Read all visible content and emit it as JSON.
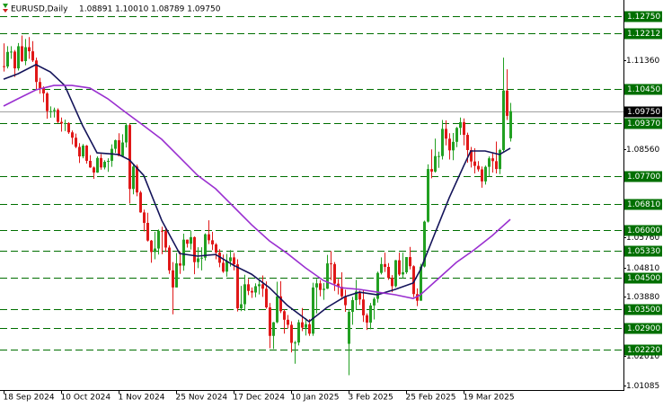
{
  "chart_data": {
    "type": "candlestick",
    "title": "EURUSD,Daily",
    "subtitle": "1.08891 1.10010 1.08789 1.09750",
    "bull_color": "#22a022",
    "bear_color": "#e01818",
    "xlim": [
      -1,
      172.5
    ],
    "ylim": [
      1.0094,
      1.1326
    ],
    "xticks": [
      {
        "value": 0,
        "label": "18 Sep 2024"
      },
      {
        "value": 16,
        "label": "10 Oct 2024"
      },
      {
        "value": 32,
        "label": "1 Nov 2024"
      },
      {
        "value": 48,
        "label": "25 Nov 2024"
      },
      {
        "value": 64,
        "label": "17 Dec 2024"
      },
      {
        "value": 80,
        "label": "10 Jan 2025"
      },
      {
        "value": 96,
        "label": "3 Feb 2025"
      },
      {
        "value": 112,
        "label": "25 Feb 2025"
      },
      {
        "value": 128,
        "label": "19 Mar 2025"
      }
    ],
    "yticks": [
      {
        "value": 1.1136,
        "label": "1.11360"
      },
      {
        "value": 1.0856,
        "label": "1.08560"
      },
      {
        "value": 1.0576,
        "label": "1.05760"
      },
      {
        "value": 1.0481,
        "label": "1.04810"
      },
      {
        "value": 1.0388,
        "label": "1.03880"
      },
      {
        "value": 1.0201,
        "label": "1.02010"
      },
      {
        "value": 1.01085,
        "label": "1.01085"
      }
    ],
    "level_color": "#006f00",
    "levels": [
      {
        "value": 1.1275,
        "label": "1.12750"
      },
      {
        "value": 1.12212,
        "label": "1.12212"
      },
      {
        "value": 1.1045,
        "label": "1.10450"
      },
      {
        "value": 1.0937,
        "label": "1.09370"
      },
      {
        "value": 1.077,
        "label": "1.07700"
      },
      {
        "value": 1.0681,
        "label": "1.06810"
      },
      {
        "value": 1.06,
        "label": "1.06000"
      },
      {
        "value": 1.0533,
        "label": "1.05330"
      },
      {
        "value": 1.045,
        "label": "1.04500"
      },
      {
        "value": 1.035,
        "label": "1.03500"
      },
      {
        "value": 1.029,
        "label": "1.02900"
      },
      {
        "value": 1.0222,
        "label": "1.02220"
      }
    ],
    "current_price": {
      "value": 1.0975,
      "label": "1.09750"
    },
    "open": [
      1.1117,
      1.1116,
      1.1162,
      1.1163,
      1.111,
      1.118,
      1.1133,
      1.1177,
      1.1164,
      1.1135,
      1.1067,
      1.1047,
      1.1031,
      1.0975,
      1.0975,
      1.0979,
      1.0941,
      1.0936,
      1.0937,
      1.0908,
      1.0891,
      1.0862,
      1.0832,
      1.0866,
      1.0818,
      1.0797,
      1.0781,
      1.0827,
      1.0797,
      1.0815,
      1.0818,
      1.0856,
      1.0883,
      1.0833,
      1.0876,
      1.0931,
      1.0729,
      1.08,
      1.0718,
      1.0655,
      1.0622,
      1.0566,
      1.053,
      1.0541,
      1.0597,
      1.0596,
      1.0544,
      1.0472,
      1.0418,
      1.0494,
      1.0487,
      1.0569,
      1.0556,
      1.0577,
      1.0498,
      1.051,
      1.0512,
      1.0586,
      1.0567,
      1.0554,
      1.0528,
      1.0496,
      1.0468,
      1.0501,
      1.0513,
      1.0491,
      1.0352,
      1.0365,
      1.0428,
      1.0407,
      1.0402,
      1.0422,
      1.0428,
      1.0414,
      1.0355,
      1.0265,
      1.0308,
      1.039,
      1.0343,
      1.0316,
      1.03,
      1.0243,
      1.0244,
      1.0308,
      1.0291,
      1.0302,
      1.0272,
      1.0418,
      1.0431,
      1.041,
      1.0414,
      1.0494,
      1.0492,
      1.043,
      1.042,
      1.039,
      1.024,
      1.0341,
      1.0378,
      1.0405,
      1.038,
      1.033,
      1.0307,
      1.0361,
      1.0382,
      1.0464,
      1.0492,
      1.0483,
      1.0448,
      1.0422,
      1.0504,
      1.0459,
      1.0466,
      1.0514,
      1.0485,
      1.0397,
      1.0376,
      1.0484,
      1.0626,
      1.0792,
      1.0784,
      1.0833,
      1.0833,
      1.0919,
      1.0888,
      1.0851,
      1.0878,
      1.0922,
      1.094,
      1.09,
      1.0852,
      1.0816,
      1.0802,
      1.0791,
      1.0753,
      1.0799,
      1.0826,
      1.0817,
      1.0792,
      1.0852,
      1.104,
      1.08891
    ],
    "high": [
      1.1189,
      1.118,
      1.118,
      1.1168,
      1.119,
      1.1214,
      1.1203,
      1.1209,
      1.1196,
      1.1144,
      1.108,
      1.1053,
      1.1035,
      1.099,
      1.0986,
      1.0984,
      1.0955,
      1.0948,
      1.094,
      1.0914,
      1.0904,
      1.0874,
      1.0871,
      1.0868,
      1.0836,
      1.08,
      1.0832,
      1.0839,
      1.082,
      1.0826,
      1.087,
      1.0885,
      1.0905,
      1.0902,
      1.0937,
      1.0935,
      1.0806,
      1.0806,
      1.0723,
      1.0664,
      1.0654,
      1.0568,
      1.0594,
      1.0601,
      1.061,
      1.0609,
      1.0551,
      1.0498,
      1.0527,
      1.0531,
      1.0588,
      1.0569,
      1.0597,
      1.0579,
      1.0545,
      1.0545,
      1.0589,
      1.063,
      1.0594,
      1.0558,
      1.0539,
      1.0522,
      1.0524,
      1.0536,
      1.0527,
      1.0507,
      1.0423,
      1.0458,
      1.0445,
      1.0418,
      1.0431,
      1.0444,
      1.0456,
      1.0437,
      1.0369,
      1.0309,
      1.0436,
      1.0438,
      1.0348,
      1.0331,
      1.0311,
      1.0249,
      1.0316,
      1.0353,
      1.0321,
      1.0318,
      1.0433,
      1.0445,
      1.0441,
      1.0432,
      1.0521,
      1.0533,
      1.0498,
      1.0445,
      1.0466,
      1.0411,
      1.0349,
      1.0388,
      1.0442,
      1.0408,
      1.041,
      1.0336,
      1.0369,
      1.0387,
      1.0468,
      1.0513,
      1.0528,
      1.0495,
      1.0457,
      1.0505,
      1.0528,
      1.0528,
      1.0514,
      1.0546,
      1.0488,
      1.0415,
      1.0493,
      1.0629,
      1.0807,
      1.0854,
      1.0888,
      1.0847,
      1.0947,
      1.0946,
      1.0905,
      1.0906,
      1.0925,
      1.0955,
      1.0952,
      1.0907,
      1.0862,
      1.0858,
      1.0817,
      1.08,
      1.0803,
      1.0832,
      1.0845,
      1.0879,
      1.0856,
      1.1144,
      1.1107,
      1.1001
    ],
    "low": [
      1.11,
      1.111,
      1.114,
      1.1083,
      1.1103,
      1.113,
      1.112,
      1.114,
      1.113,
      1.1041,
      1.103,
      1.1003,
      1.0951,
      1.0954,
      1.0955,
      1.0937,
      1.091,
      1.0912,
      1.0903,
      1.087,
      1.0858,
      1.0811,
      1.0826,
      1.0809,
      1.0796,
      1.0761,
      1.078,
      1.079,
      1.0791,
      1.0783,
      1.0799,
      1.0843,
      1.0834,
      1.083,
      1.086,
      1.0683,
      1.0712,
      1.0706,
      1.0654,
      1.0595,
      1.0563,
      1.0496,
      1.0507,
      1.0522,
      1.0523,
      1.053,
      1.0461,
      1.0333,
      1.0418,
      1.0461,
      1.0471,
      1.0544,
      1.0538,
      1.046,
      1.0479,
      1.0472,
      1.0503,
      1.0555,
      1.0536,
      1.0507,
      1.0482,
      1.0464,
      1.0452,
      1.0484,
      1.0472,
      1.0342,
      1.0343,
      1.0344,
      1.0394,
      1.0385,
      1.0387,
      1.0396,
      1.0388,
      1.0351,
      1.0226,
      1.0224,
      1.0305,
      1.0337,
      1.0272,
      1.0288,
      1.0213,
      1.0177,
      1.0235,
      1.028,
      1.0266,
      1.0265,
      1.0265,
      1.0336,
      1.039,
      1.0379,
      1.0413,
      1.0441,
      1.0407,
      1.0396,
      1.038,
      1.0341,
      1.0141,
      1.03,
      1.0347,
      1.0363,
      1.0309,
      1.0284,
      1.0286,
      1.0317,
      1.037,
      1.0459,
      1.0467,
      1.0442,
      1.0403,
      1.0418,
      1.0454,
      1.0447,
      1.0461,
      1.0475,
      1.0387,
      1.0359,
      1.0376,
      1.0481,
      1.0623,
      1.0763,
      1.0781,
      1.0796,
      1.0822,
      1.0867,
      1.0822,
      1.082,
      1.0861,
      1.09,
      1.0867,
      1.0812,
      1.0797,
      1.0778,
      1.0784,
      1.0733,
      1.0743,
      1.0768,
      1.0781,
      1.0778,
      1.0776,
      1.0847,
      1.0947,
      1.08789
    ],
    "close": [
      1.1116,
      1.1162,
      1.1163,
      1.111,
      1.118,
      1.1133,
      1.1177,
      1.1164,
      1.1135,
      1.1067,
      1.1047,
      1.1031,
      1.0975,
      1.0975,
      1.0979,
      1.0941,
      1.0936,
      1.0937,
      1.0908,
      1.0891,
      1.0862,
      1.0832,
      1.0866,
      1.0818,
      1.0797,
      1.0781,
      1.0827,
      1.0797,
      1.0815,
      1.0818,
      1.0856,
      1.0883,
      1.0833,
      1.0876,
      1.0931,
      1.0729,
      1.08,
      1.0718,
      1.0655,
      1.0622,
      1.0566,
      1.053,
      1.0541,
      1.0597,
      1.0596,
      1.0544,
      1.0472,
      1.0418,
      1.0494,
      1.0487,
      1.0569,
      1.0556,
      1.0577,
      1.0498,
      1.051,
      1.0512,
      1.0586,
      1.0567,
      1.0554,
      1.0528,
      1.0496,
      1.0468,
      1.0501,
      1.0513,
      1.0491,
      1.0352,
      1.0365,
      1.0428,
      1.0407,
      1.0402,
      1.0422,
      1.0428,
      1.0414,
      1.0355,
      1.0265,
      1.0308,
      1.039,
      1.0343,
      1.0316,
      1.03,
      1.0243,
      1.0244,
      1.0308,
      1.0291,
      1.0302,
      1.0272,
      1.0418,
      1.0431,
      1.041,
      1.0414,
      1.0494,
      1.0492,
      1.043,
      1.042,
      1.039,
      1.0362,
      1.0341,
      1.0378,
      1.0405,
      1.038,
      1.033,
      1.0307,
      1.0361,
      1.0382,
      1.0464,
      1.0492,
      1.0483,
      1.0448,
      1.0422,
      1.0504,
      1.0459,
      1.0466,
      1.0514,
      1.0485,
      1.0397,
      1.0376,
      1.0484,
      1.0626,
      1.0792,
      1.0784,
      1.0833,
      1.0833,
      1.0919,
      1.0888,
      1.0851,
      1.0878,
      1.0922,
      1.094,
      1.09,
      1.0852,
      1.0816,
      1.0802,
      1.0791,
      1.0753,
      1.0799,
      1.0826,
      1.0817,
      1.0792,
      1.0852,
      1.104,
      1.096,
      1.0975
    ],
    "lines": [
      {
        "color": "#14145a",
        "x": [
          0,
          4,
          9,
          13,
          17,
          22,
          26,
          32,
          35,
          39,
          44,
          49,
          54,
          59,
          64,
          69,
          74,
          79,
          85,
          90,
          95,
          99,
          104,
          109,
          114,
          116,
          120,
          124,
          128,
          130,
          134,
          138,
          141
        ],
        "values": [
          1.1076,
          1.1093,
          1.1122,
          1.1099,
          1.1056,
          1.0929,
          1.0843,
          1.0838,
          1.0821,
          1.0772,
          1.063,
          1.0525,
          1.0517,
          1.0522,
          1.0488,
          1.046,
          1.0417,
          1.0361,
          1.031,
          1.0355,
          1.0389,
          1.0403,
          1.0395,
          1.0412,
          1.0432,
          1.0474,
          1.0588,
          1.0701,
          1.0801,
          1.0849,
          1.0849,
          1.0838,
          1.0858
        ]
      },
      {
        "color": "#9a30d0",
        "x": [
          0,
          4,
          9,
          14,
          19,
          24,
          29,
          34,
          39,
          44,
          49,
          54,
          59,
          64,
          69,
          74,
          79,
          84,
          89,
          94,
          99,
          104,
          109,
          114,
          116,
          121,
          126,
          131,
          136,
          141
        ],
        "values": [
          1.0991,
          1.1014,
          1.1042,
          1.1056,
          1.1056,
          1.1048,
          1.1014,
          1.0971,
          1.0929,
          1.0886,
          1.0829,
          1.0772,
          1.073,
          1.0673,
          1.0616,
          1.0565,
          1.0525,
          1.048,
          1.044,
          1.0417,
          1.0412,
          1.0403,
          1.0395,
          1.0383,
          1.0395,
          1.0446,
          1.0497,
          1.0537,
          1.0582,
          1.0633
        ]
      }
    ]
  }
}
